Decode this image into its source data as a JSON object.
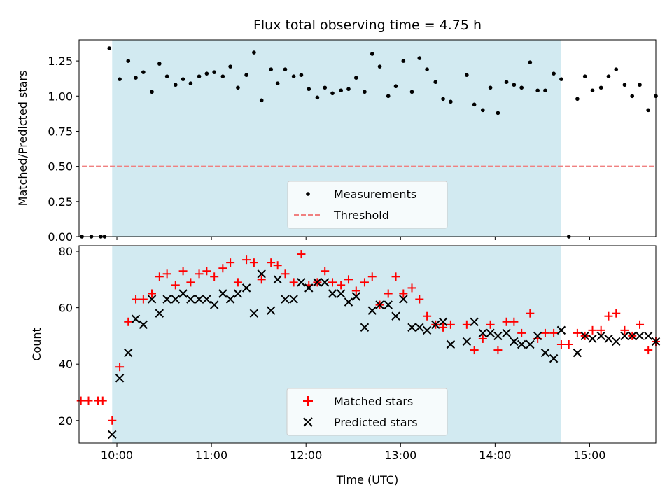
{
  "title": "Flux total observing time = 4.75 h",
  "colors": {
    "shade": "#add8e6",
    "threshold": "#f08080",
    "measurements": "#000000",
    "matched": "#ff0000",
    "predicted": "#000000"
  },
  "chart_data": [
    {
      "type": "scatter",
      "ylabel": "Matched/Predicted stars",
      "xlim": [
        9.6,
        15.7
      ],
      "ylim": [
        0,
        1.4
      ],
      "yticks": [
        0.0,
        0.25,
        0.5,
        0.75,
        1.0,
        1.25
      ],
      "ytick_labels": [
        "0.00",
        "0.25",
        "0.50",
        "0.75",
        "1.00",
        "1.25"
      ],
      "shaded_span": [
        9.95,
        14.7
      ],
      "grid": false,
      "legend_position": "lower center",
      "threshold": {
        "name": "Threshold",
        "y": 0.5,
        "x": [
          9.63,
          15.7
        ]
      },
      "series": [
        {
          "name": "Measurements",
          "x": [
            9.63,
            9.73,
            9.83,
            9.87,
            9.92,
            10.03,
            10.12,
            10.2,
            10.28,
            10.37,
            10.45,
            10.53,
            10.62,
            10.7,
            10.78,
            10.87,
            10.95,
            11.03,
            11.12,
            11.2,
            11.28,
            11.37,
            11.45,
            11.53,
            11.63,
            11.7,
            11.78,
            11.87,
            11.95,
            12.03,
            12.12,
            12.2,
            12.28,
            12.37,
            12.45,
            12.53,
            12.62,
            12.7,
            12.78,
            12.87,
            12.95,
            13.03,
            13.12,
            13.2,
            13.28,
            13.37,
            13.45,
            13.53,
            13.7,
            13.78,
            13.87,
            13.95,
            14.03,
            14.12,
            14.2,
            14.28,
            14.37,
            14.45,
            14.53,
            14.62,
            14.7,
            14.78,
            14.87,
            14.95,
            15.03,
            15.12,
            15.2,
            15.28,
            15.37,
            15.45,
            15.53,
            15.62,
            15.7
          ],
          "y": [
            0.0,
            0.0,
            0.0,
            0.0,
            1.34,
            1.12,
            1.25,
            1.13,
            1.17,
            1.03,
            1.23,
            1.14,
            1.08,
            1.12,
            1.09,
            1.14,
            1.16,
            1.17,
            1.14,
            1.21,
            1.06,
            1.15,
            1.31,
            0.97,
            1.19,
            1.09,
            1.19,
            1.14,
            1.15,
            1.05,
            0.99,
            1.06,
            1.02,
            1.04,
            1.05,
            1.13,
            1.03,
            1.3,
            1.21,
            1.0,
            1.07,
            1.25,
            1.03,
            1.27,
            1.19,
            1.1,
            0.98,
            0.96,
            1.15,
            0.94,
            0.9,
            1.06,
            0.88,
            1.1,
            1.08,
            1.06,
            1.24,
            1.04,
            1.04,
            1.16,
            1.12,
            0.0,
            0.98,
            1.14,
            1.04,
            1.06,
            1.14,
            1.19,
            1.08,
            1.0,
            1.08,
            0.9,
            1.0
          ]
        }
      ]
    },
    {
      "type": "scatter",
      "xlabel": "Time (UTC)",
      "ylabel": "Count",
      "xlim": [
        9.6,
        15.7
      ],
      "ylim": [
        12,
        82
      ],
      "xticks": [
        10,
        11,
        12,
        13,
        14,
        15
      ],
      "xtick_labels": [
        "10:00",
        "11:00",
        "12:00",
        "13:00",
        "14:00",
        "15:00"
      ],
      "yticks": [
        20,
        40,
        60,
        80
      ],
      "ytick_labels": [
        "20",
        "40",
        "60",
        "80"
      ],
      "shaded_span": [
        9.95,
        14.7
      ],
      "grid": false,
      "legend_position": "lower center",
      "series": [
        {
          "name": "Matched stars",
          "marker": "plus",
          "x": [
            9.62,
            9.7,
            9.8,
            9.85,
            9.95,
            10.03,
            10.12,
            10.2,
            10.28,
            10.37,
            10.45,
            10.53,
            10.62,
            10.7,
            10.78,
            10.87,
            10.95,
            11.03,
            11.12,
            11.2,
            11.28,
            11.37,
            11.45,
            11.53,
            11.63,
            11.7,
            11.78,
            11.87,
            11.95,
            12.03,
            12.12,
            12.2,
            12.28,
            12.37,
            12.45,
            12.53,
            12.62,
            12.7,
            12.78,
            12.87,
            12.95,
            13.03,
            13.12,
            13.2,
            13.28,
            13.37,
            13.45,
            13.53,
            13.7,
            13.78,
            13.87,
            13.95,
            14.03,
            14.12,
            14.2,
            14.28,
            14.37,
            14.45,
            14.53,
            14.62,
            14.7,
            14.78,
            14.87,
            14.95,
            15.03,
            15.12,
            15.2,
            15.28,
            15.37,
            15.45,
            15.53,
            15.62,
            15.7
          ],
          "y": [
            27,
            27,
            27,
            27,
            20,
            39,
            55,
            63,
            63,
            65,
            71,
            72,
            68,
            73,
            69,
            72,
            73,
            71,
            74,
            76,
            69,
            77,
            76,
            70,
            76,
            75,
            72,
            69,
            79,
            68,
            69,
            73,
            69,
            68,
            70,
            66,
            69,
            71,
            61,
            65,
            71,
            65,
            67,
            63,
            57,
            54,
            53,
            54,
            54,
            45,
            49,
            54,
            45,
            55,
            55,
            51,
            58,
            49,
            51,
            51,
            47,
            47,
            51,
            50,
            52,
            52,
            57,
            58,
            52,
            50,
            54,
            45,
            48
          ]
        },
        {
          "name": "Predicted stars",
          "marker": "x",
          "x": [
            9.95,
            10.03,
            10.12,
            10.2,
            10.28,
            10.37,
            10.45,
            10.53,
            10.62,
            10.7,
            10.78,
            10.87,
            10.95,
            11.03,
            11.12,
            11.2,
            11.28,
            11.37,
            11.45,
            11.53,
            11.63,
            11.7,
            11.78,
            11.87,
            11.95,
            12.03,
            12.12,
            12.2,
            12.28,
            12.37,
            12.45,
            12.53,
            12.62,
            12.7,
            12.78,
            12.87,
            12.95,
            13.03,
            13.12,
            13.2,
            13.28,
            13.37,
            13.45,
            13.53,
            13.7,
            13.78,
            13.87,
            13.95,
            14.03,
            14.12,
            14.2,
            14.28,
            14.37,
            14.45,
            14.53,
            14.62,
            14.7,
            14.87,
            14.95,
            15.03,
            15.12,
            15.2,
            15.28,
            15.37,
            15.45,
            15.53,
            15.62,
            15.7
          ],
          "y": [
            15,
            35,
            44,
            56,
            54,
            63,
            58,
            63,
            63,
            65,
            63,
            63,
            63,
            61,
            65,
            63,
            65,
            67,
            58,
            72,
            59,
            70,
            63,
            63,
            69,
            67,
            69,
            69,
            65,
            65,
            62,
            64,
            53,
            59,
            61,
            61,
            57,
            63,
            53,
            53,
            52,
            54,
            55,
            47,
            48,
            55,
            51,
            51,
            50,
            51,
            48,
            47,
            47,
            50,
            44,
            42,
            52,
            44,
            50,
            49,
            50,
            49,
            48,
            50,
            50,
            50,
            50,
            48
          ]
        }
      ]
    }
  ]
}
